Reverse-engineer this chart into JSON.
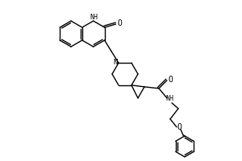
{
  "background_color": "#ffffff",
  "line_color": "#000000",
  "line_width": 1.0,
  "figsize": [
    3.0,
    2.0
  ],
  "dpi": 100,
  "xlim": [
    0,
    300
  ],
  "ylim": [
    0,
    200
  ]
}
